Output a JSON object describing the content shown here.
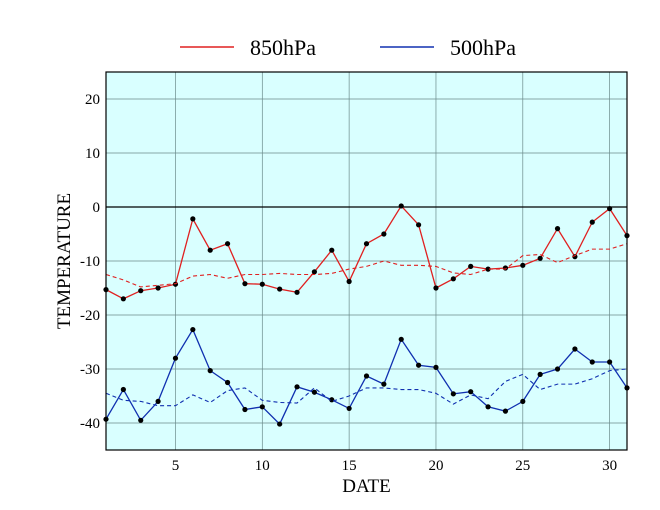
{
  "chart_data": {
    "type": "line",
    "xlabel": "DATE",
    "ylabel": "TEMPERATURE",
    "xlim": [
      1,
      31
    ],
    "ylim": [
      -45,
      25
    ],
    "x_ticks": [
      5,
      10,
      15,
      20,
      25,
      30
    ],
    "y_ticks": [
      20,
      10,
      0,
      -10,
      -20,
      -30,
      -40
    ],
    "grid": true,
    "zero_line": 0,
    "legend_position": "top",
    "background_color": "#d9ffff",
    "x": [
      1,
      2,
      3,
      4,
      5,
      6,
      7,
      8,
      9,
      10,
      11,
      12,
      13,
      14,
      15,
      16,
      17,
      18,
      19,
      20,
      21,
      22,
      23,
      24,
      25,
      26,
      27,
      28,
      29,
      30,
      31
    ],
    "series": [
      {
        "name": "850hPa",
        "color": "#e02020",
        "style": "solid",
        "markers": true,
        "values": [
          -15.3,
          -17.0,
          -15.5,
          -15.0,
          -14.3,
          -2.2,
          -8.0,
          -6.8,
          -14.2,
          -14.3,
          -15.2,
          -15.8,
          -12.0,
          -8.0,
          -13.8,
          -6.8,
          -5.0,
          0.2,
          -3.3,
          -15.0,
          -13.3,
          -11.0,
          -11.5,
          -11.3,
          -10.8,
          -9.5,
          -4.0,
          -9.2,
          -2.8,
          -0.3,
          -5.3
        ]
      },
      {
        "name": "",
        "color": "#e02020",
        "style": "dashed",
        "markers": false,
        "values": [
          -12.5,
          -13.5,
          -14.8,
          -14.5,
          -14.2,
          -12.8,
          -12.5,
          -13.2,
          -12.5,
          -12.5,
          -12.3,
          -12.5,
          -12.5,
          -12.3,
          -11.5,
          -11.0,
          -10.0,
          -10.8,
          -10.8,
          -11.0,
          -12.2,
          -12.5,
          -11.5,
          -11.5,
          -9.0,
          -8.8,
          -10.3,
          -9.0,
          -7.8,
          -7.8,
          -6.8
        ]
      },
      {
        "name": "500hPa",
        "color": "#1030b0",
        "style": "solid",
        "markers": true,
        "values": [
          -39.3,
          -33.8,
          -39.5,
          -36.0,
          -28.0,
          -22.7,
          -30.3,
          -32.5,
          -37.5,
          -37.0,
          -40.2,
          -33.3,
          -34.3,
          -35.7,
          -37.3,
          -31.3,
          -32.8,
          -24.5,
          -29.3,
          -29.7,
          -34.6,
          -34.2,
          -37.0,
          -37.8,
          -36.0,
          -31.0,
          -30.0,
          -26.3,
          -28.7,
          -28.7,
          -33.5
        ]
      },
      {
        "name": "",
        "color": "#1030b0",
        "style": "dashed",
        "markers": false,
        "values": [
          -34.5,
          -35.8,
          -36.0,
          -36.8,
          -36.8,
          -34.8,
          -36.2,
          -34.0,
          -33.5,
          -35.8,
          -36.2,
          -36.3,
          -33.5,
          -36.0,
          -35.0,
          -33.5,
          -33.5,
          -33.8,
          -33.8,
          -34.5,
          -36.5,
          -34.8,
          -35.5,
          -32.3,
          -31.0,
          -33.8,
          -32.8,
          -32.8,
          -31.8,
          -30.3,
          -30.0
        ]
      }
    ]
  }
}
